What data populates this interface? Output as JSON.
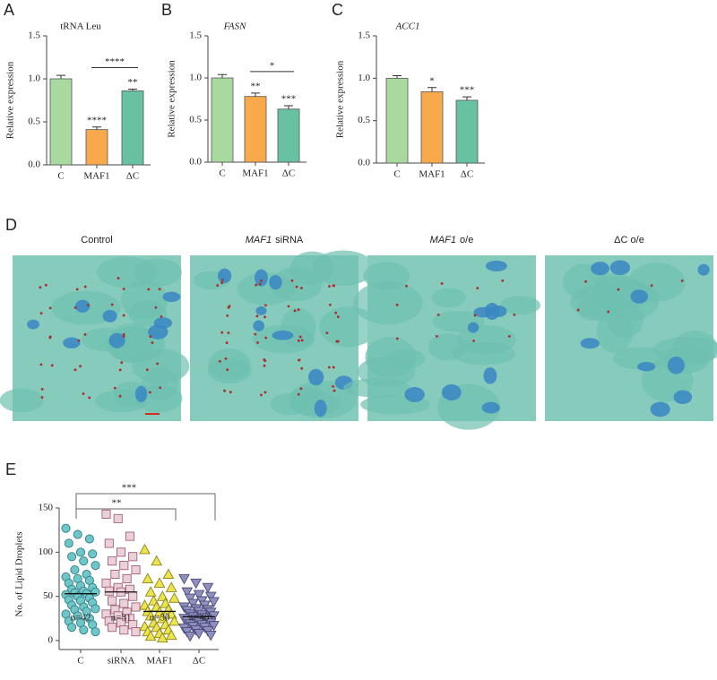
{
  "chart_data": [
    {
      "type": "bar",
      "label": "A",
      "title": "tRNA Leu",
      "title_italic": false,
      "ylabel": "Relative expression",
      "categories": [
        "C",
        "MAF1",
        "ΔC"
      ],
      "values": [
        1.0,
        0.41,
        0.86
      ],
      "errors": [
        0.04,
        0.03,
        0.02
      ],
      "colors": [
        "#a9d99f",
        "#f8a94c",
        "#68c2a2"
      ],
      "ylim": [
        0,
        1.5
      ],
      "yticks": [
        {
          "value": 0,
          "label": "0.0"
        },
        0.5,
        {
          "value": 1,
          "label": "1.0"
        },
        {
          "value": 1.5,
          "label": "1.5"
        }
      ],
      "significance": [
        null,
        "****",
        "**"
      ],
      "comparisons": [
        {
          "between": [
            "MAF1",
            "ΔC"
          ],
          "label": "****"
        }
      ]
    },
    {
      "type": "bar",
      "label": "B",
      "title": "FASN",
      "title_italic": true,
      "ylabel": "Relative expression",
      "categories": [
        "C",
        "MAF1",
        "ΔC"
      ],
      "values": [
        1.0,
        0.78,
        0.63
      ],
      "errors": [
        0.04,
        0.04,
        0.04
      ],
      "colors": [
        "#a9d99f",
        "#f8a94c",
        "#68c2a2"
      ],
      "ylim": [
        0,
        1.5
      ],
      "yticks": [
        {
          "value": 0,
          "label": "0.0"
        },
        0.5,
        {
          "value": 1,
          "label": "1.0"
        },
        {
          "value": 1.5,
          "label": "1.5"
        }
      ],
      "significance": [
        null,
        "**",
        "***"
      ],
      "comparisons": [
        {
          "between": [
            "MAF1",
            "ΔC"
          ],
          "label": "*"
        }
      ]
    },
    {
      "type": "bar",
      "label": "C",
      "title": "ACC1",
      "title_italic": true,
      "ylabel": "Relative expression",
      "categories": [
        "C",
        "MAF1",
        "ΔC"
      ],
      "values": [
        1.0,
        0.84,
        0.74
      ],
      "errors": [
        0.03,
        0.05,
        0.04
      ],
      "colors": [
        "#a9d99f",
        "#f8a94c",
        "#68c2a2"
      ],
      "ylim": [
        0,
        1.5
      ],
      "yticks": [
        {
          "value": 0,
          "label": "0.0"
        },
        0.5,
        {
          "value": 1,
          "label": "1.0"
        },
        {
          "value": 1.5,
          "label": "1.5"
        }
      ],
      "significance": [
        null,
        "*",
        "***"
      ],
      "comparisons": []
    },
    {
      "type": "strip",
      "label": "E",
      "ylabel": "No. of Lipid Droplets",
      "categories": [
        "C",
        "siRNA",
        "MAF1",
        "ΔC"
      ],
      "counts": [
        "n=42",
        "n=31",
        "n=30",
        "n=40"
      ],
      "series": [
        {
          "name": "C",
          "shape": "circle",
          "color": "#6fc6c8",
          "edge": "#2f7f86",
          "mean": 53,
          "values": [
            127,
            120,
            115,
            110,
            100,
            98,
            95,
            90,
            85,
            80,
            75,
            72,
            70,
            68,
            65,
            62,
            60,
            58,
            56,
            55,
            54,
            53,
            52,
            50,
            48,
            46,
            45,
            43,
            40,
            38,
            36,
            35,
            33,
            30,
            28,
            25,
            22,
            20,
            18,
            15,
            12,
            10
          ]
        },
        {
          "name": "siRNA",
          "shape": "square",
          "color": "#ecd0d8",
          "edge": "#a0607a",
          "mean": 55,
          "values": [
            143,
            138,
            118,
            110,
            100,
            95,
            90,
            85,
            80,
            75,
            70,
            65,
            60,
            58,
            56,
            55,
            50,
            45,
            42,
            38,
            35,
            32,
            30,
            28,
            25,
            22,
            20,
            18,
            15,
            12,
            10
          ]
        },
        {
          "name": "MAF1",
          "shape": "triangle",
          "color": "#ece44a",
          "edge": "#8a8420",
          "mean": 33,
          "values": [
            103,
            90,
            75,
            70,
            65,
            60,
            55,
            50,
            48,
            45,
            42,
            40,
            38,
            35,
            33,
            32,
            30,
            28,
            25,
            22,
            20,
            18,
            16,
            15,
            12,
            10,
            8,
            6,
            5,
            3
          ]
        },
        {
          "name": "ΔC",
          "shape": "down-triangle",
          "color": "#9090c0",
          "edge": "#4a4a78",
          "mean": 27,
          "values": [
            70,
            65,
            60,
            55,
            52,
            50,
            48,
            45,
            44,
            42,
            40,
            38,
            36,
            35,
            34,
            33,
            32,
            30,
            29,
            28,
            27,
            26,
            25,
            24,
            23,
            22,
            21,
            20,
            19,
            18,
            17,
            16,
            15,
            14,
            12,
            11,
            10,
            8,
            6,
            5
          ]
        }
      ],
      "ylim": [
        0,
        150
      ],
      "yticks": [
        0,
        50,
        100,
        150
      ],
      "comparisons": [
        {
          "between": [
            "C",
            "MAF1"
          ],
          "label": "**"
        },
        {
          "between": [
            "C",
            "ΔC"
          ],
          "label": "***"
        }
      ]
    }
  ],
  "micrographs": {
    "label": "D",
    "titles": [
      {
        "text": "Control"
      },
      {
        "italic": "MAF1",
        "text": "siRNA"
      },
      {
        "italic": "MAF1",
        "text": "o/e"
      },
      {
        "text": "ΔC o/e"
      }
    ]
  }
}
